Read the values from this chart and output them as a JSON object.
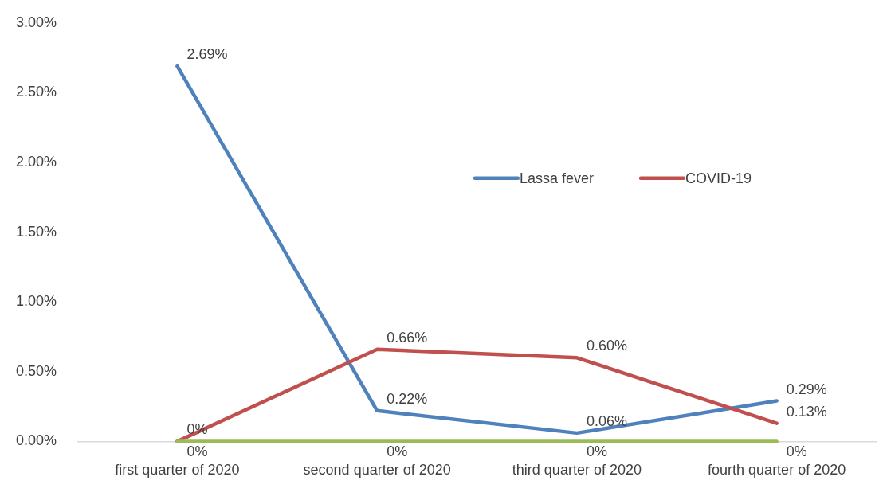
{
  "chart_data": {
    "type": "line",
    "categories": [
      "first quarter of 2020",
      "second quarter of 2020",
      "third quarter of 2020",
      "fourth quarter of 2020"
    ],
    "series": [
      {
        "name": "Lassa fever",
        "color": "#4f81bd",
        "values": [
          2.69,
          0.22,
          0.06,
          0.29
        ],
        "value_labels": [
          "2.69%",
          "0.22%",
          "0.06%",
          "0.29%"
        ]
      },
      {
        "name": "COVID-19",
        "color": "#c0504d",
        "values": [
          0,
          0.66,
          0.6,
          0.13
        ],
        "value_labels": [
          "0%",
          "0.66%",
          "0.60%",
          "0.13%"
        ]
      },
      {
        "color": "#9bbb59",
        "values": [
          0,
          0,
          0,
          0
        ],
        "value_labels": [
          "0%",
          "0%",
          "0%",
          "0%"
        ]
      }
    ],
    "ylim": [
      0,
      3
    ],
    "yticks": [
      {
        "value": 0,
        "label": "0.00%"
      },
      {
        "value": 0.5,
        "label": "0.50%"
      },
      {
        "value": 1,
        "label": "1.00%"
      },
      {
        "value": 1.5,
        "label": "1.50%"
      },
      {
        "value": 2,
        "label": "2.00%"
      },
      {
        "value": 2.5,
        "label": "2.50%"
      },
      {
        "value": 3,
        "label": "3.00%"
      }
    ],
    "grid": false,
    "legend": "top right",
    "marker": "none",
    "line_style": "solid"
  }
}
